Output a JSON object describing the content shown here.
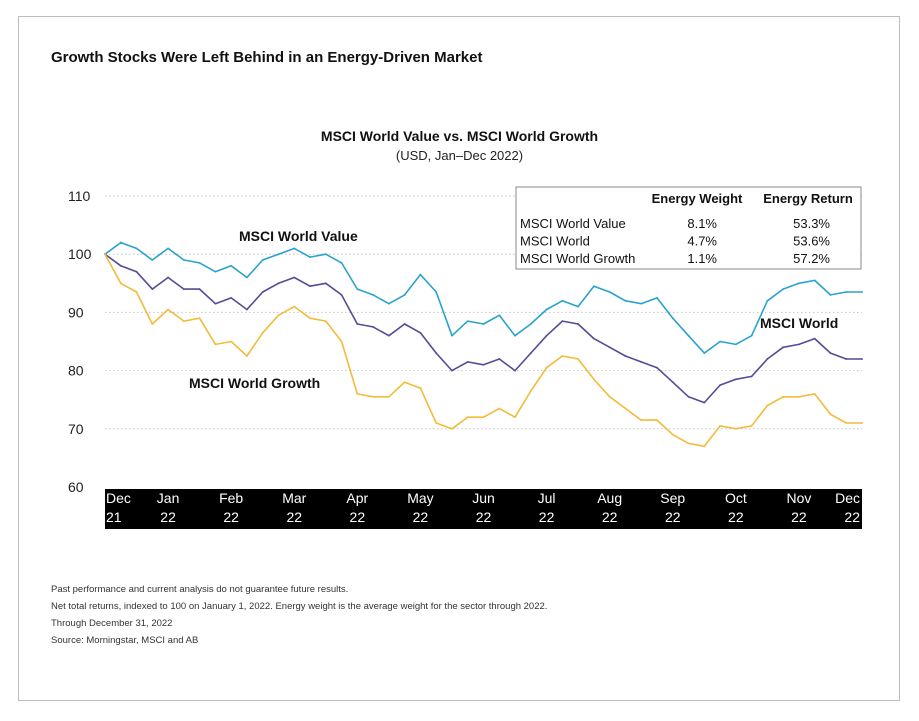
{
  "page_title": "Growth Stocks Were Left Behind in an Energy-Driven Market",
  "chart_data": {
    "type": "line",
    "title": "MSCI World Value vs. MSCI World Growth",
    "subtitle": "(USD, Jan–Dec 2022)",
    "ylim": [
      60,
      110
    ],
    "yticks": [
      110,
      100,
      90,
      80,
      70,
      60
    ],
    "x_ticks": [
      {
        "top": "Dec",
        "bottom": "21"
      },
      {
        "top": "Jan",
        "bottom": "22"
      },
      {
        "top": "Feb",
        "bottom": "22"
      },
      {
        "top": "Mar",
        "bottom": "22"
      },
      {
        "top": "Apr",
        "bottom": "22"
      },
      {
        "top": "May",
        "bottom": "22"
      },
      {
        "top": "Jun",
        "bottom": "22"
      },
      {
        "top": "Jul",
        "bottom": "22"
      },
      {
        "top": "Aug",
        "bottom": "22"
      },
      {
        "top": "Sep",
        "bottom": "22"
      },
      {
        "top": "Oct",
        "bottom": "22"
      },
      {
        "top": "Nov",
        "bottom": "22"
      },
      {
        "top": "Dec",
        "bottom": "22"
      }
    ],
    "x": [
      0,
      0.25,
      0.5,
      0.75,
      1,
      1.25,
      1.5,
      1.75,
      2,
      2.25,
      2.5,
      2.75,
      3,
      3.25,
      3.5,
      3.75,
      4,
      4.25,
      4.5,
      4.75,
      5,
      5.25,
      5.5,
      5.75,
      6,
      6.25,
      6.5,
      6.75,
      7,
      7.25,
      7.5,
      7.75,
      8,
      8.25,
      8.5,
      8.75,
      9,
      9.25,
      9.5,
      9.75,
      10,
      10.25,
      10.5,
      10.75,
      11,
      11.25,
      11.5,
      11.75,
      12
    ],
    "series": [
      {
        "name": "MSCI World Value",
        "color": "#2aa3cc",
        "values": [
          100,
          102,
          101,
          99,
          101,
          99,
          98.5,
          97,
          98,
          96,
          99,
          100,
          101,
          99.5,
          100,
          98.5,
          94,
          93,
          91.5,
          93,
          96.5,
          93.5,
          86,
          88.5,
          88,
          89.5,
          86,
          88,
          90.5,
          92,
          91,
          94.5,
          93.5,
          92,
          91.5,
          92.5,
          89,
          86,
          83,
          85,
          84.5,
          86,
          92,
          94,
          95,
          95.5,
          93,
          93.5,
          93.5
        ]
      },
      {
        "name": "MSCI World",
        "color": "#574a96",
        "values": [
          100,
          98,
          97,
          94,
          96,
          94,
          94,
          91.5,
          92.5,
          90.5,
          93.5,
          95,
          96,
          94.5,
          95,
          93,
          88,
          87.5,
          86,
          88,
          86.5,
          83,
          80,
          81.5,
          81,
          82,
          80,
          83,
          86,
          88.5,
          88,
          85.5,
          84,
          82.5,
          81.5,
          80.5,
          78,
          75.5,
          74.5,
          77.5,
          78.5,
          79,
          82,
          84,
          84.5,
          85.5,
          83,
          82,
          82
        ]
      },
      {
        "name": "MSCI World Growth",
        "color": "#f2bc3a",
        "values": [
          100,
          95,
          93.5,
          88,
          90.5,
          88.5,
          89,
          84.5,
          85,
          82.5,
          86.5,
          89.5,
          91,
          89,
          88.5,
          85,
          76,
          75.5,
          75.5,
          78,
          77,
          71,
          70,
          72,
          72,
          73.5,
          72,
          76.5,
          80.5,
          82.5,
          82,
          78.5,
          75.5,
          73.5,
          71.5,
          71.5,
          69,
          67.5,
          67,
          70.5,
          70,
          70.5,
          74,
          75.5,
          75.5,
          76,
          72.5,
          71,
          71
        ]
      }
    ],
    "annotations": [
      {
        "text": "MSCI World Value",
        "series": 0
      },
      {
        "text": "MSCI World",
        "series": 1
      },
      {
        "text": "MSCI World Growth",
        "series": 2
      }
    ],
    "inset_table": {
      "headers": [
        "",
        "Energy Weight",
        "Energy Return"
      ],
      "rows": [
        [
          "MSCI World Value",
          "8.1%",
          "53.3%"
        ],
        [
          "MSCI World",
          "4.7%",
          "53.6%"
        ],
        [
          "MSCI World Growth",
          "1.1%",
          "57.2%"
        ]
      ]
    },
    "grid": "horizontal-dotted"
  },
  "footnotes": [
    "Past performance and current analysis do not guarantee future results.",
    "Net total returns, indexed to 100 on January 1, 2022. Energy weight is the average weight for the sector through 2022.",
    "Through December 31, 2022",
    "Source: Morningstar, MSCI and AB"
  ]
}
